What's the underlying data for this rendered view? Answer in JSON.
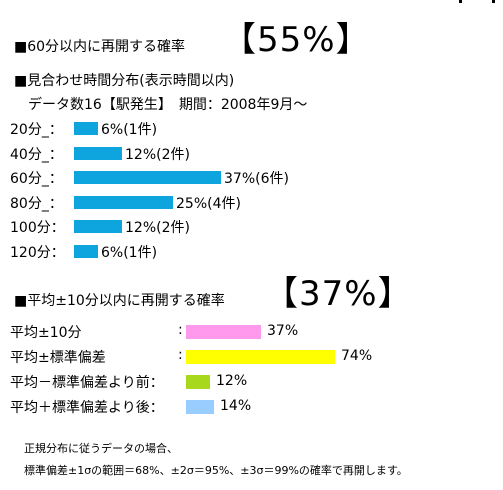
{
  "corner_mark": "",
  "section1": {
    "heading": "■60分以内に再開する確率",
    "big_value": "【55%】"
  },
  "section2": {
    "heading": "■見合わせ時間分布(表示時間以内)",
    "subheading": "データ数16【駅発生】　期間：2008年9月～"
  },
  "chart_data": [
    {
      "type": "bar",
      "orientation": "horizontal",
      "categories": [
        "20分_：",
        "40分_：",
        "60分_：",
        "80分_：",
        "100分：",
        "120分："
      ],
      "values": [
        6,
        12,
        37,
        25,
        12,
        6
      ],
      "counts": [
        1,
        2,
        6,
        4,
        2,
        1
      ],
      "value_labels": [
        "6%(1件)",
        "12%(2件)",
        "37%(6件)",
        "25%(4件)",
        "12%(2件)",
        "6%(1件)"
      ],
      "unit": "%",
      "bar_color": "#0ea5de",
      "xlim": [
        0,
        37
      ]
    },
    {
      "type": "bar",
      "orientation": "horizontal",
      "categories": [
        "平均±10分",
        "平均±標準偏差",
        "平均－標準偏差より前：",
        "平均＋標準偏差より後："
      ],
      "values": [
        37,
        74,
        12,
        14
      ],
      "value_labels": [
        "37%",
        "74%",
        "12%",
        "14%"
      ],
      "unit": "%",
      "colors": [
        "#ff99ee",
        "#ffff00",
        "#a8d81c",
        "#99ccff"
      ],
      "xlim": [
        0,
        74
      ]
    }
  ],
  "section3": {
    "heading": "■平均±10分以内に再開する確率",
    "big_value": "【37%】",
    "colons": [
      ":",
      ":"
    ]
  },
  "notes": {
    "line1": "正規分布に従うデータの場合、",
    "line2": "標準偏差±1σの範囲＝68%、±2σ＝95%、±3σ＝99%の確率で再開します。"
  }
}
